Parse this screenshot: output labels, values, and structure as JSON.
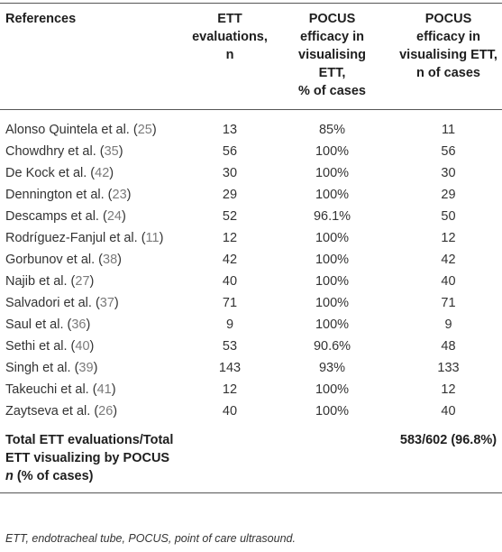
{
  "table": {
    "headers": {
      "references": "References",
      "ett_lines": [
        "ETT",
        "evaluations,",
        "n"
      ],
      "pct_lines": [
        "POCUS",
        "efficacy in",
        "visualising",
        "ETT,",
        "% of cases"
      ],
      "n_lines": [
        "POCUS",
        "efficacy in",
        "visualising ETT,",
        "n of cases"
      ]
    },
    "rows": [
      {
        "name": "Alonso Quintela et al. (",
        "ref": "25",
        "close": ")",
        "ett": "13",
        "pct": "85%",
        "n": "11"
      },
      {
        "name": "Chowdhry et al. (",
        "ref": "35",
        "close": ")",
        "ett": "56",
        "pct": "100%",
        "n": "56"
      },
      {
        "name": "De Kock et al. (",
        "ref": "42",
        "close": ")",
        "ett": "30",
        "pct": "100%",
        "n": "30"
      },
      {
        "name": "Dennington et al. (",
        "ref": "23",
        "close": ")",
        "ett": "29",
        "pct": "100%",
        "n": "29"
      },
      {
        "name": "Descamps et al. (",
        "ref": "24",
        "close": ")",
        "ett": "52",
        "pct": "96.1%",
        "n": "50"
      },
      {
        "name": "Rodríguez-Fanjul et al. (",
        "ref": "11",
        "close": ")",
        "ett": "12",
        "pct": "100%",
        "n": "12"
      },
      {
        "name": "Gorbunov et al. (",
        "ref": "38",
        "close": ")",
        "ett": "42",
        "pct": "100%",
        "n": "42"
      },
      {
        "name": "Najib et al. (",
        "ref": "27",
        "close": ")",
        "ett": "40",
        "pct": "100%",
        "n": "40"
      },
      {
        "name": "Salvadori et al. (",
        "ref": "37",
        "close": ")",
        "ett": "71",
        "pct": "100%",
        "n": "71"
      },
      {
        "name": "Saul et al. (",
        "ref": "36",
        "close": ")",
        "ett": "9",
        "pct": "100%",
        "n": "9"
      },
      {
        "name": "Sethi et al. (",
        "ref": "40",
        "close": ")",
        "ett": "53",
        "pct": "90.6%",
        "n": "48"
      },
      {
        "name": "Singh et al. (",
        "ref": "39",
        "close": ")",
        "ett": "143",
        "pct": "93%",
        "n": "133"
      },
      {
        "name": "Takeuchi et al. (",
        "ref": "41",
        "close": ")",
        "ett": "12",
        "pct": "100%",
        "n": "12"
      },
      {
        "name": "Zaytseva et al. (",
        "ref": "26",
        "close": ")",
        "ett": "40",
        "pct": "100%",
        "n": "40"
      }
    ],
    "total": {
      "line1": "Total ETT evaluations/Total",
      "line2": "ETT visualizing by POCUS",
      "line3_n": "n",
      "line3_rest": " (% of cases)",
      "value": "583/602 (96.8%)"
    }
  },
  "footnote": "ETT, endotracheal tube, POCUS, point of care ultrasound."
}
